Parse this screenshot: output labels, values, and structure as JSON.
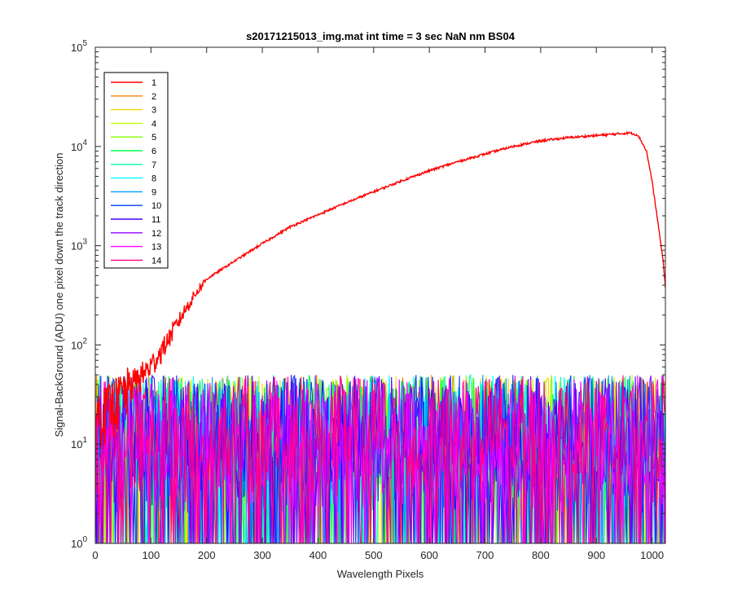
{
  "chart_data": {
    "type": "line",
    "title": "s20171215013_img.mat int time = 3 sec  NaN nm BS04",
    "xlabel": "Wavelength Pixels",
    "ylabel": "Signal-BackGround (ADU) one pixel down the track direction",
    "xlim": [
      0,
      1024
    ],
    "ylim": [
      1,
      100000
    ],
    "yscale": "log",
    "grid": false,
    "legend_position": "top-left",
    "xticks": [
      "0",
      "100",
      "200",
      "300",
      "400",
      "500",
      "600",
      "700",
      "800",
      "900",
      "1000"
    ],
    "yticks": [
      {
        "base": "10",
        "exp": "0"
      },
      {
        "base": "10",
        "exp": "1"
      },
      {
        "base": "10",
        "exp": "2"
      },
      {
        "base": "10",
        "exp": "3"
      },
      {
        "base": "10",
        "exp": "4"
      },
      {
        "base": "10",
        "exp": "5"
      }
    ],
    "main_series": {
      "name": "1",
      "color": "#ff0000",
      "x": [
        0,
        20,
        40,
        60,
        80,
        100,
        120,
        140,
        160,
        180,
        200,
        250,
        300,
        350,
        400,
        450,
        500,
        550,
        600,
        650,
        700,
        750,
        800,
        850,
        900,
        930,
        960,
        975,
        990,
        1000,
        1010,
        1020,
        1024
      ],
      "y": [
        20,
        24,
        30,
        38,
        48,
        62,
        90,
        140,
        220,
        330,
        460,
        700,
        1050,
        1550,
        2050,
        2700,
        3500,
        4500,
        5700,
        7000,
        8400,
        10000,
        11400,
        12300,
        12900,
        13300,
        13700,
        13000,
        9000,
        4500,
        1800,
        700,
        380
      ]
    },
    "noise_range": [
      1,
      50
    ],
    "series": [
      {
        "name": "1",
        "color": "#ff0000"
      },
      {
        "name": "2",
        "color": "#ff7f00"
      },
      {
        "name": "3",
        "color": "#ffd500"
      },
      {
        "name": "4",
        "color": "#bfff00"
      },
      {
        "name": "5",
        "color": "#80ff00"
      },
      {
        "name": "6",
        "color": "#00ff40"
      },
      {
        "name": "7",
        "color": "#00ffa0"
      },
      {
        "name": "8",
        "color": "#00ffff"
      },
      {
        "name": "9",
        "color": "#00a0ff"
      },
      {
        "name": "10",
        "color": "#0040ff"
      },
      {
        "name": "11",
        "color": "#4000ff"
      },
      {
        "name": "12",
        "color": "#9000ff"
      },
      {
        "name": "13",
        "color": "#ff00ff"
      },
      {
        "name": "14",
        "color": "#ff0080"
      }
    ]
  }
}
